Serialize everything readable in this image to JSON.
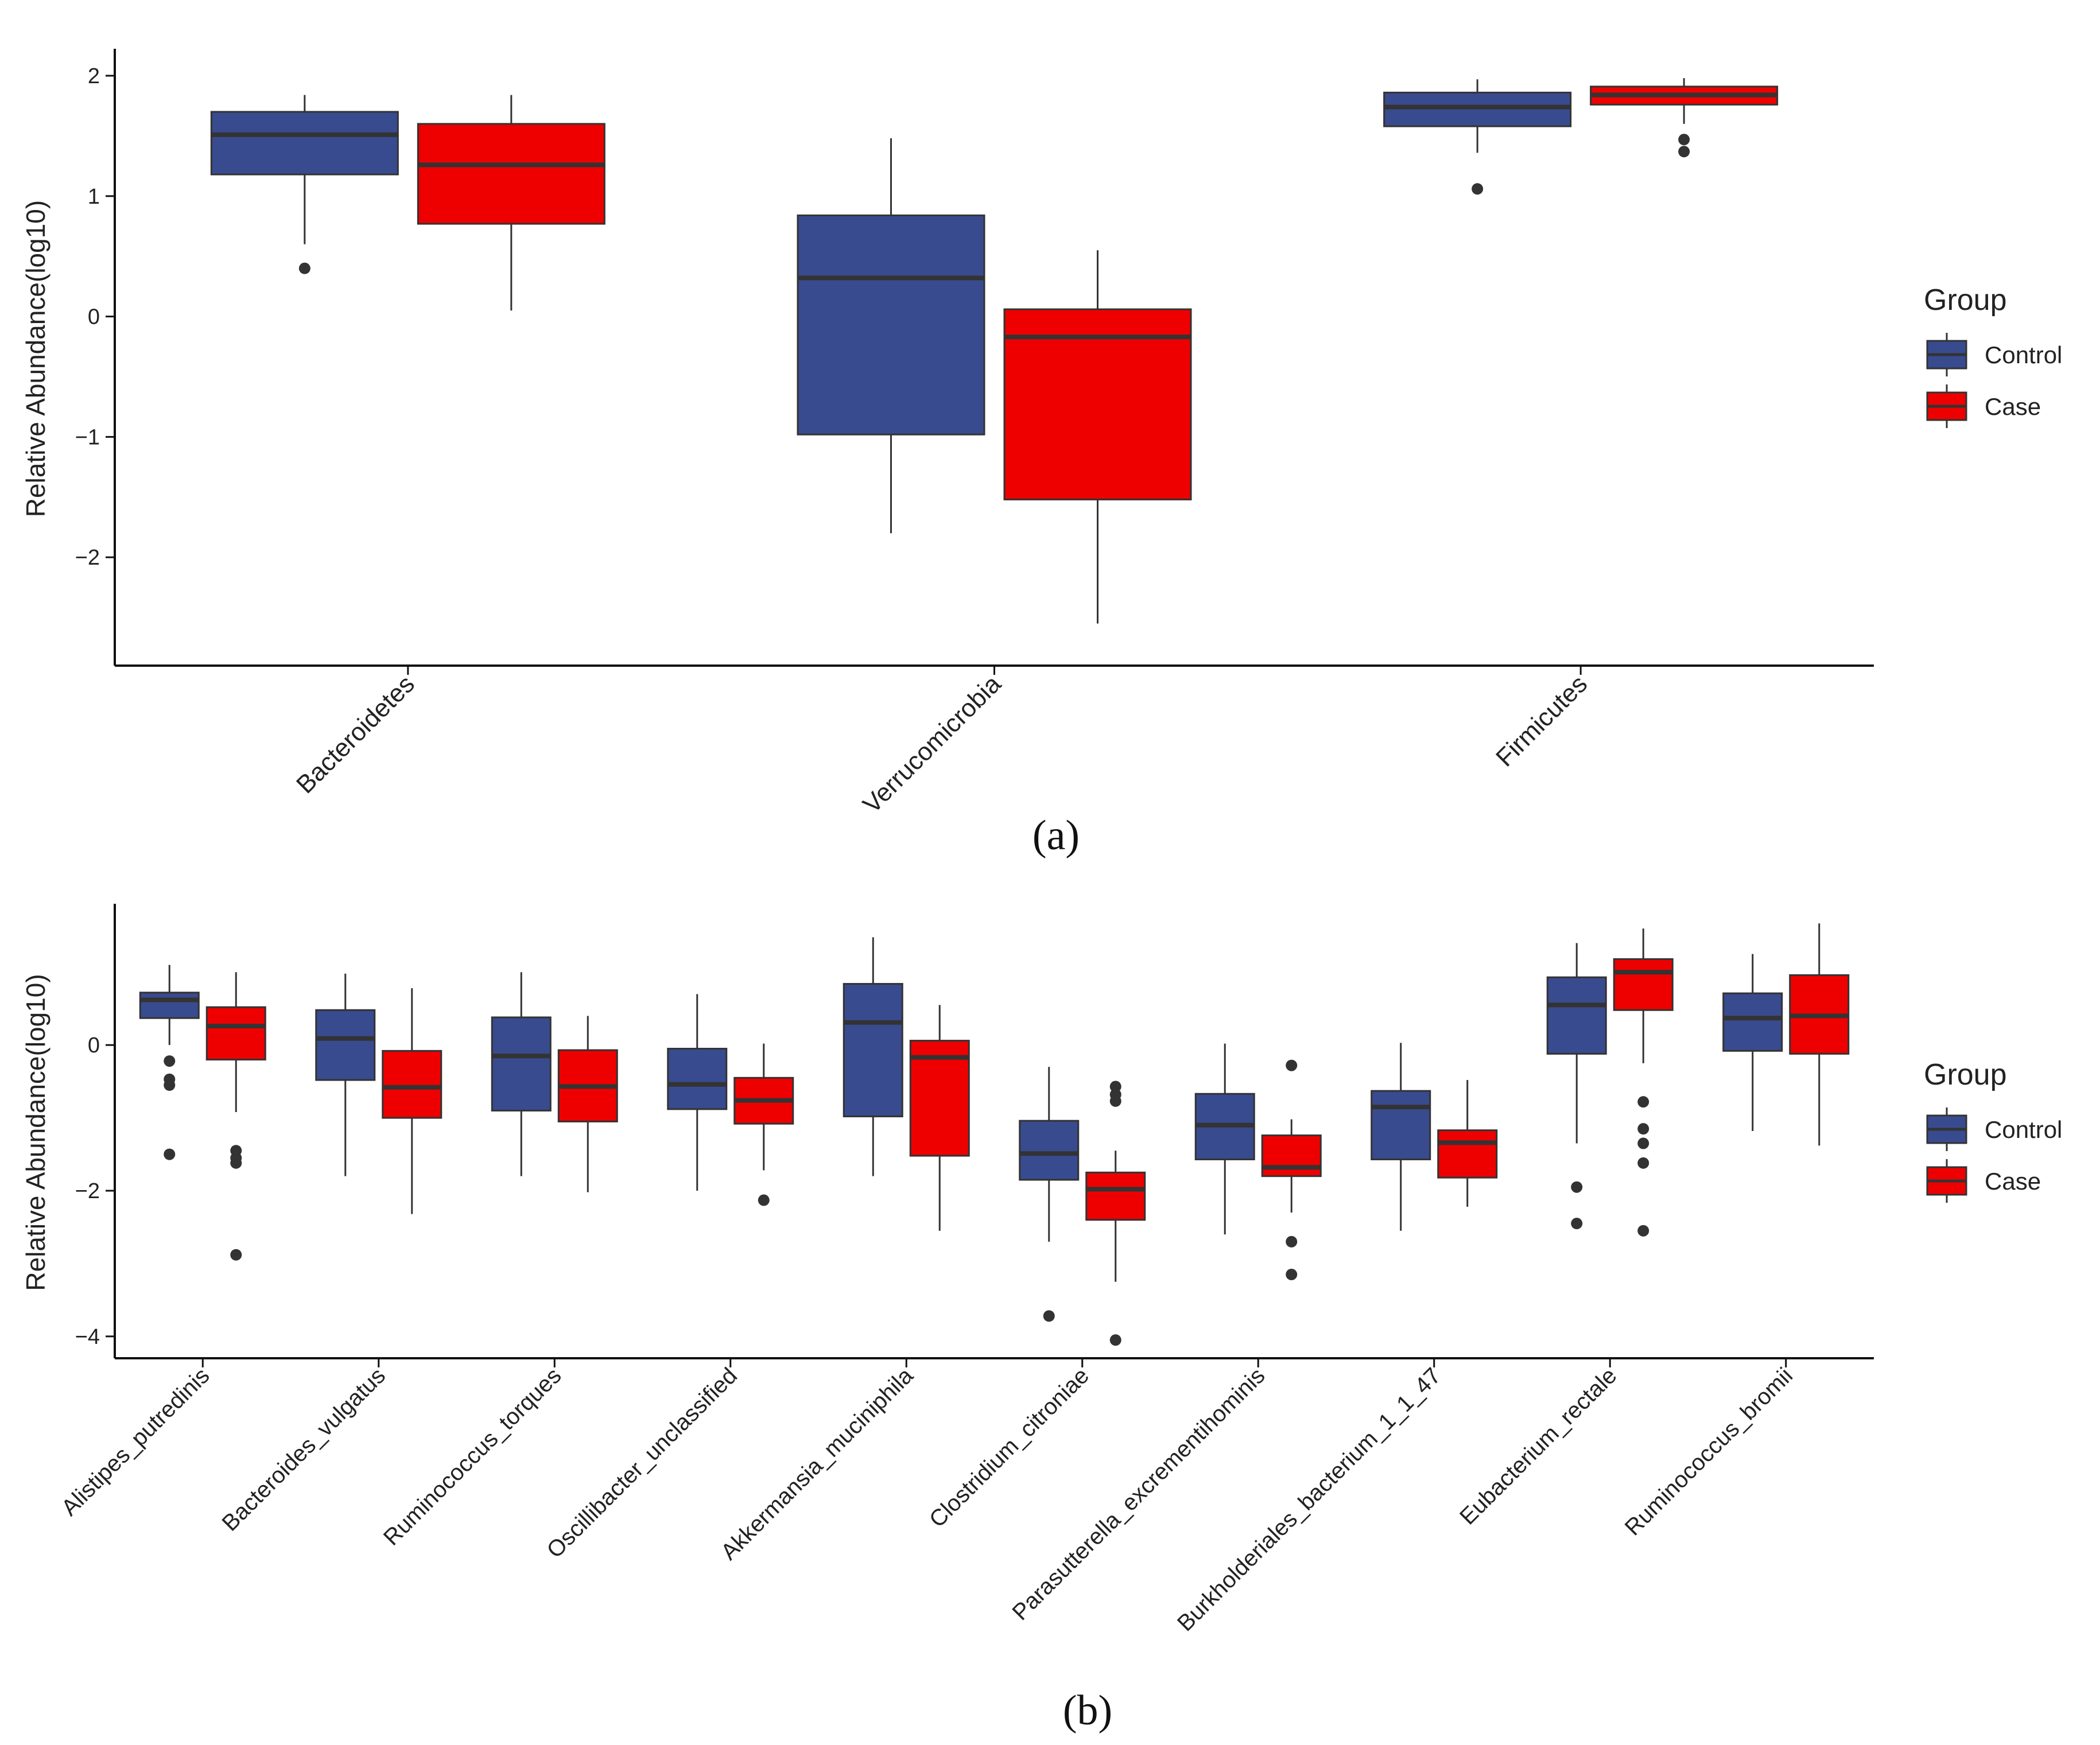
{
  "colors": {
    "control": "#394b8f",
    "case": "#ee0000",
    "outline": "#333333",
    "axis": "#111111"
  },
  "chart_data": [
    {
      "type": "box",
      "panel_label": "(a)",
      "ylabel": "Relative Abundance(log10)",
      "ylim": [
        -2.9,
        2.2
      ],
      "yticks": [
        -2,
        -1,
        0,
        1,
        2
      ],
      "ytick_labels": [
        "−2",
        "−1",
        "0",
        "1",
        "2"
      ],
      "categories": [
        "Bacteroidetes",
        "Verrucomicrobia",
        "Firmicutes"
      ],
      "legend": {
        "title": "Group",
        "entries": [
          "Control",
          "Case"
        ]
      },
      "series": [
        {
          "name": "Control",
          "boxes": [
            {
              "q1": 1.18,
              "median": 1.51,
              "q3": 1.7,
              "wlo": 0.6,
              "whi": 1.84,
              "outliers": [
                0.4
              ]
            },
            {
              "q1": -0.98,
              "median": 0.32,
              "q3": 0.84,
              "wlo": -1.8,
              "whi": 1.48,
              "outliers": []
            },
            {
              "q1": 1.58,
              "median": 1.74,
              "q3": 1.86,
              "wlo": 1.36,
              "whi": 1.97,
              "outliers": [
                1.06
              ]
            }
          ]
        },
        {
          "name": "Case",
          "boxes": [
            {
              "q1": 0.77,
              "median": 1.26,
              "q3": 1.6,
              "wlo": 0.05,
              "whi": 1.84,
              "outliers": []
            },
            {
              "q1": -1.52,
              "median": -0.17,
              "q3": 0.06,
              "wlo": -2.55,
              "whi": 0.55,
              "outliers": []
            },
            {
              "q1": 1.76,
              "median": 1.84,
              "q3": 1.91,
              "wlo": 1.6,
              "whi": 1.98,
              "outliers": [
                1.47,
                1.37
              ]
            }
          ]
        }
      ]
    },
    {
      "type": "box",
      "panel_label": "(b)",
      "ylabel": "Relative Abundance(log10)",
      "ylim": [
        -4.3,
        1.9
      ],
      "yticks": [
        -4,
        -2,
        0
      ],
      "ytick_labels": [
        "−4",
        "−2",
        "0"
      ],
      "categories": [
        "Alistipes_putredinis",
        "Bacteroides_vulgatus",
        "Ruminococcus_torques",
        "Oscillibacter_unclassified",
        "Akkermansia_muciniphila",
        "Clostridium_citroniae",
        "Parasutterella_excrementihominis",
        "Burkholderiales_bacterium_1_1_47",
        "Eubacterium_rectale",
        "Ruminococcus_bromii"
      ],
      "legend": {
        "title": "Group",
        "entries": [
          "Control",
          "Case"
        ]
      },
      "series": [
        {
          "name": "Control",
          "boxes": [
            {
              "q1": 0.37,
              "median": 0.62,
              "q3": 0.72,
              "wlo": 0.0,
              "whi": 1.1,
              "outliers": [
                -0.22,
                -0.47,
                -0.55,
                -1.5
              ]
            },
            {
              "q1": -0.48,
              "median": 0.09,
              "q3": 0.48,
              "wlo": -1.8,
              "whi": 0.98,
              "outliers": []
            },
            {
              "q1": -0.9,
              "median": -0.15,
              "q3": 0.38,
              "wlo": -1.8,
              "whi": 1.0,
              "outliers": []
            },
            {
              "q1": -0.88,
              "median": -0.54,
              "q3": -0.05,
              "wlo": -2.0,
              "whi": 0.7,
              "outliers": []
            },
            {
              "q1": -0.98,
              "median": 0.31,
              "q3": 0.84,
              "wlo": -1.8,
              "whi": 1.48,
              "outliers": []
            },
            {
              "q1": -1.85,
              "median": -1.49,
              "q3": -1.04,
              "wlo": -2.7,
              "whi": -0.3,
              "outliers": [
                -3.72
              ]
            },
            {
              "q1": -1.57,
              "median": -1.1,
              "q3": -0.67,
              "wlo": -2.6,
              "whi": 0.02,
              "outliers": []
            },
            {
              "q1": -1.57,
              "median": -0.85,
              "q3": -0.63,
              "wlo": -2.55,
              "whi": 0.03,
              "outliers": []
            },
            {
              "q1": -0.12,
              "median": 0.55,
              "q3": 0.93,
              "wlo": -1.35,
              "whi": 1.4,
              "outliers": [
                -1.95,
                -2.45
              ]
            },
            {
              "q1": -0.08,
              "median": 0.37,
              "q3": 0.71,
              "wlo": -1.18,
              "whi": 1.25,
              "outliers": []
            }
          ]
        },
        {
          "name": "Case",
          "boxes": [
            {
              "q1": -0.2,
              "median": 0.26,
              "q3": 0.52,
              "wlo": -0.92,
              "whi": 1.0,
              "outliers": [
                -1.45,
                -1.55,
                -1.62,
                -2.88
              ]
            },
            {
              "q1": -1.0,
              "median": -0.58,
              "q3": -0.08,
              "wlo": -2.32,
              "whi": 0.78,
              "outliers": []
            },
            {
              "q1": -1.05,
              "median": -0.57,
              "q3": -0.07,
              "wlo": -2.02,
              "whi": 0.4,
              "outliers": []
            },
            {
              "q1": -1.08,
              "median": -0.76,
              "q3": -0.45,
              "wlo": -1.72,
              "whi": 0.02,
              "outliers": [
                -2.13
              ]
            },
            {
              "q1": -1.52,
              "median": -0.17,
              "q3": 0.06,
              "wlo": -2.55,
              "whi": 0.55,
              "outliers": []
            },
            {
              "q1": -2.4,
              "median": -1.98,
              "q3": -1.75,
              "wlo": -3.25,
              "whi": -1.45,
              "outliers": [
                -0.57,
                -0.68,
                -0.77,
                -4.05
              ]
            },
            {
              "q1": -1.8,
              "median": -1.68,
              "q3": -1.24,
              "wlo": -2.3,
              "whi": -1.02,
              "outliers": [
                -0.28,
                -2.7,
                -3.15
              ]
            },
            {
              "q1": -1.82,
              "median": -1.34,
              "q3": -1.17,
              "wlo": -2.22,
              "whi": -0.48,
              "outliers": []
            },
            {
              "q1": 0.48,
              "median": 1.0,
              "q3": 1.18,
              "wlo": -0.25,
              "whi": 1.6,
              "outliers": [
                -0.78,
                -1.15,
                -1.35,
                -1.62,
                -2.55
              ]
            },
            {
              "q1": -0.12,
              "median": 0.4,
              "q3": 0.96,
              "wlo": -1.38,
              "whi": 1.67,
              "outliers": []
            }
          ]
        }
      ]
    }
  ]
}
